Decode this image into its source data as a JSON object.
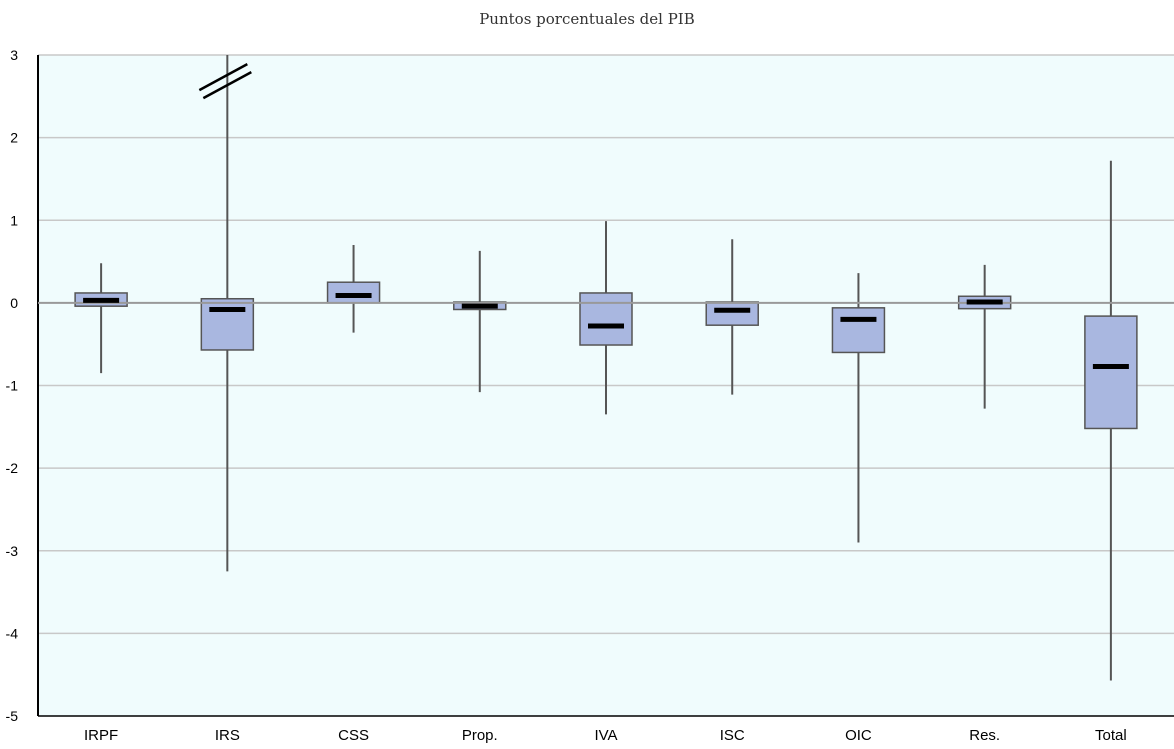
{
  "chart_data": {
    "type": "boxplot",
    "title": "",
    "subtitle": "Puntos porcentuales del PIB",
    "xlabel": "",
    "ylabel": "",
    "ylim": [
      -5,
      3
    ],
    "yticks": [
      3,
      2,
      1,
      0,
      -1,
      -2,
      -3,
      -4,
      -5
    ],
    "grid": true,
    "categories": [
      "IRPF",
      "IRS",
      "CSS",
      "Prop.",
      "IVA",
      "ISC",
      "OIC",
      "Res.",
      "Total"
    ],
    "boxes": [
      {
        "category": "IRPF",
        "min": -0.85,
        "q1": -0.04,
        "median": 0.03,
        "q3": 0.12,
        "max": 0.48,
        "max_truncated": false
      },
      {
        "category": "IRS",
        "min": -3.25,
        "q1": -0.57,
        "median": -0.08,
        "q3": 0.05,
        "max": 3.0,
        "max_truncated": true
      },
      {
        "category": "CSS",
        "min": -0.36,
        "q1": 0.0,
        "median": 0.09,
        "q3": 0.25,
        "max": 0.7,
        "max_truncated": false
      },
      {
        "category": "Prop.",
        "min": -1.08,
        "q1": -0.08,
        "median": -0.04,
        "q3": 0.01,
        "max": 0.63,
        "max_truncated": false
      },
      {
        "category": "IVA",
        "min": -1.35,
        "q1": -0.51,
        "median": -0.28,
        "q3": 0.12,
        "max": 0.99,
        "max_truncated": false
      },
      {
        "category": "ISC",
        "min": -1.11,
        "q1": -0.27,
        "median": -0.09,
        "q3": 0.01,
        "max": 0.77,
        "max_truncated": false
      },
      {
        "category": "OIC",
        "min": -2.9,
        "q1": -0.6,
        "median": -0.2,
        "q3": -0.06,
        "max": 0.36,
        "max_truncated": false
      },
      {
        "category": "Res.",
        "min": -1.28,
        "q1": -0.07,
        "median": 0.01,
        "q3": 0.08,
        "max": 0.46,
        "max_truncated": false
      },
      {
        "category": "Total",
        "min": -4.57,
        "q1": -1.52,
        "median": -0.77,
        "q3": -0.16,
        "max": 1.72,
        "max_truncated": false
      }
    ],
    "colors": {
      "plot_bg": "#f0fcfd",
      "box_fill": "#a9b7e0",
      "box_stroke": "#555555",
      "median": "#000000",
      "whisker": "#555555",
      "grid": "#c8c8c8",
      "zero_line": "#999999",
      "axis": "#000000"
    }
  }
}
